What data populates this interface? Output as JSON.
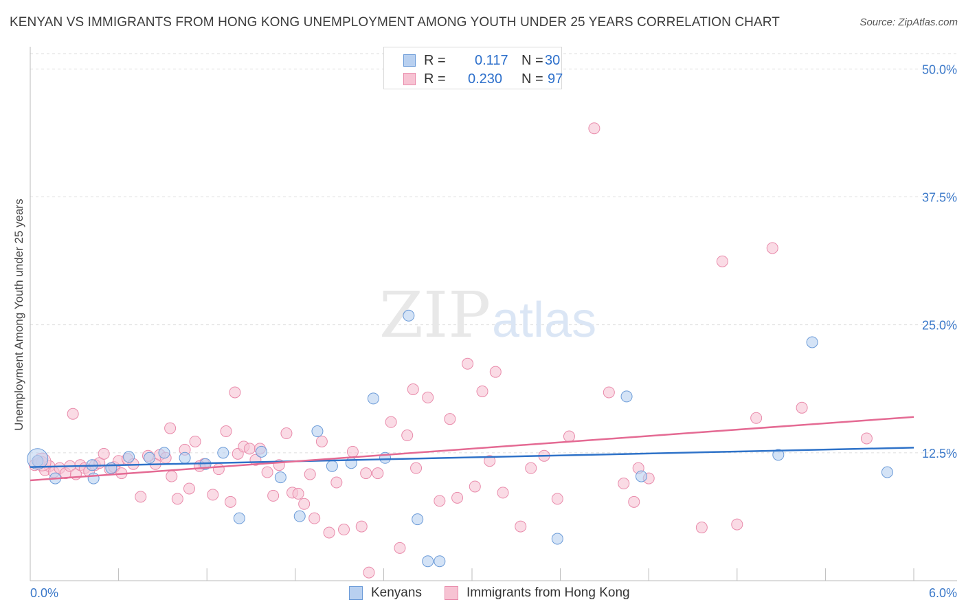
{
  "title": "KENYAN VS IMMIGRANTS FROM HONG KONG UNEMPLOYMENT AMONG YOUTH UNDER 25 YEARS CORRELATION CHART",
  "source": "Source: ZipAtlas.com",
  "watermark": {
    "zip": "ZIP",
    "atlas": "atlas"
  },
  "legend": {
    "r_label": "R =",
    "n_label": "N =",
    "rows": [
      {
        "r": "0.117",
        "n": "30"
      },
      {
        "r": "0.230",
        "n": "97"
      }
    ]
  },
  "colors": {
    "kenyans_fill": "#b8d0f0",
    "kenyans_stroke": "#6b9bd8",
    "kenyans_line": "#2e72c8",
    "hk_fill": "#f7c3d3",
    "hk_stroke": "#e98bab",
    "hk_line": "#e46a93",
    "axis_label": "#3a78c9",
    "grid": "#dddddd"
  },
  "chart_data": {
    "type": "scatter",
    "title": "KENYAN VS IMMIGRANTS FROM HONG KONG UNEMPLOYMENT AMONG YOUTH UNDER 25 YEARS CORRELATION CHART",
    "xlabel": "",
    "ylabel": "Unemployment Among Youth under 25 years",
    "xlim": [
      0,
      6.0
    ],
    "ylim": [
      0,
      51.5
    ],
    "x_tick_labels": [
      "0.0%",
      "6.0%"
    ],
    "y_ticks": [
      12.5,
      25.0,
      37.5,
      50.0
    ],
    "y_tick_labels": [
      "12.5%",
      "25.0%",
      "37.5%",
      "50.0%"
    ],
    "grid": "horizontal dashed",
    "legend_position": "top-center",
    "series": [
      {
        "name": "Kenyans",
        "r": 0.117,
        "n": 30,
        "trend": {
          "x": [
            0,
            6.0
          ],
          "y": [
            11.1,
            13.0
          ]
        },
        "points": [
          [
            0.05,
            11.7
          ],
          [
            0.17,
            10.0
          ],
          [
            0.43,
            10.0
          ],
          [
            0.42,
            11.3
          ],
          [
            0.55,
            11.0
          ],
          [
            0.67,
            12.1
          ],
          [
            0.81,
            12.0
          ],
          [
            0.91,
            12.5
          ],
          [
            1.05,
            12.0
          ],
          [
            1.19,
            11.4
          ],
          [
            1.31,
            12.5
          ],
          [
            1.42,
            6.1
          ],
          [
            1.57,
            12.6
          ],
          [
            1.7,
            10.1
          ],
          [
            1.83,
            6.3
          ],
          [
            1.95,
            14.6
          ],
          [
            2.05,
            11.2
          ],
          [
            2.18,
            11.5
          ],
          [
            2.33,
            17.8
          ],
          [
            2.41,
            12.0
          ],
          [
            2.57,
            25.9
          ],
          [
            2.63,
            6.0
          ],
          [
            2.7,
            1.9
          ],
          [
            2.78,
            1.9
          ],
          [
            3.58,
            4.1
          ],
          [
            4.05,
            18.0
          ],
          [
            4.15,
            10.2
          ],
          [
            5.08,
            12.3
          ],
          [
            5.31,
            23.3
          ],
          [
            5.82,
            10.6
          ]
        ]
      },
      {
        "name": "Immigrants from Hong Kong",
        "r": 0.23,
        "n": 97,
        "trend": {
          "x": [
            0,
            6.0
          ],
          "y": [
            9.8,
            16.0
          ]
        },
        "points": [
          [
            0.03,
            11.3
          ],
          [
            0.06,
            11.5
          ],
          [
            0.08,
            11.6
          ],
          [
            0.1,
            10.8
          ],
          [
            0.13,
            11.2
          ],
          [
            0.16,
            10.6
          ],
          [
            0.2,
            11.0
          ],
          [
            0.24,
            10.5
          ],
          [
            0.27,
            11.2
          ],
          [
            0.31,
            10.4
          ],
          [
            0.34,
            11.3
          ],
          [
            0.37,
            11.0
          ],
          [
            0.4,
            10.7
          ],
          [
            0.44,
            11.3
          ],
          [
            0.47,
            11.5
          ],
          [
            0.5,
            12.4
          ],
          [
            0.54,
            10.9
          ],
          [
            0.57,
            11.1
          ],
          [
            0.6,
            11.7
          ],
          [
            0.62,
            10.5
          ],
          [
            0.66,
            11.9
          ],
          [
            0.7,
            11.4
          ],
          [
            0.75,
            8.2
          ],
          [
            0.8,
            12.2
          ],
          [
            0.85,
            11.4
          ],
          [
            0.88,
            12.3
          ],
          [
            0.92,
            12.0
          ],
          [
            0.96,
            10.2
          ],
          [
            1.0,
            8.0
          ],
          [
            1.05,
            12.8
          ],
          [
            1.08,
            9.0
          ],
          [
            1.12,
            13.6
          ],
          [
            1.18,
            11.4
          ],
          [
            1.24,
            8.4
          ],
          [
            1.28,
            10.9
          ],
          [
            1.33,
            14.6
          ],
          [
            1.36,
            7.7
          ],
          [
            1.41,
            12.4
          ],
          [
            1.45,
            13.1
          ],
          [
            1.49,
            12.9
          ],
          [
            1.53,
            11.8
          ],
          [
            1.56,
            12.9
          ],
          [
            1.61,
            10.6
          ],
          [
            1.65,
            8.3
          ],
          [
            1.69,
            11.3
          ],
          [
            1.74,
            14.4
          ],
          [
            1.78,
            8.6
          ],
          [
            1.82,
            8.5
          ],
          [
            1.86,
            7.5
          ],
          [
            1.9,
            10.4
          ],
          [
            1.93,
            6.1
          ],
          [
            1.98,
            13.6
          ],
          [
            2.03,
            4.7
          ],
          [
            2.08,
            9.6
          ],
          [
            2.13,
            5.0
          ],
          [
            2.19,
            12.6
          ],
          [
            2.25,
            5.3
          ],
          [
            2.3,
            0.8
          ],
          [
            2.36,
            10.5
          ],
          [
            2.45,
            15.5
          ],
          [
            2.51,
            3.2
          ],
          [
            2.56,
            14.2
          ],
          [
            2.62,
            11.0
          ],
          [
            2.7,
            17.9
          ],
          [
            2.78,
            7.8
          ],
          [
            2.85,
            15.8
          ],
          [
            2.9,
            8.1
          ],
          [
            2.97,
            21.2
          ],
          [
            3.02,
            9.2
          ],
          [
            3.07,
            18.5
          ],
          [
            3.12,
            11.7
          ],
          [
            3.16,
            20.4
          ],
          [
            3.21,
            8.6
          ],
          [
            3.33,
            5.3
          ],
          [
            3.4,
            11.0
          ],
          [
            3.58,
            8.0
          ],
          [
            3.66,
            14.1
          ],
          [
            3.83,
            44.2
          ],
          [
            3.93,
            18.4
          ],
          [
            4.03,
            9.5
          ],
          [
            4.13,
            11.0
          ],
          [
            4.2,
            10.0
          ],
          [
            4.56,
            5.2
          ],
          [
            4.7,
            31.2
          ],
          [
            4.8,
            5.5
          ],
          [
            4.93,
            15.9
          ],
          [
            5.04,
            32.5
          ],
          [
            5.24,
            16.9
          ],
          [
            5.68,
            13.9
          ],
          [
            2.28,
            10.5
          ],
          [
            1.15,
            11.2
          ],
          [
            0.29,
            16.3
          ],
          [
            0.95,
            14.9
          ],
          [
            1.39,
            18.4
          ],
          [
            2.6,
            18.7
          ],
          [
            3.49,
            12.2
          ],
          [
            4.1,
            7.7
          ]
        ]
      }
    ]
  },
  "bottom_legend": {
    "kenyans": "Kenyans",
    "hk": "Immigrants from Hong Kong"
  },
  "x_axis": {
    "left_label": "0.0%",
    "right_label": "6.0%"
  }
}
